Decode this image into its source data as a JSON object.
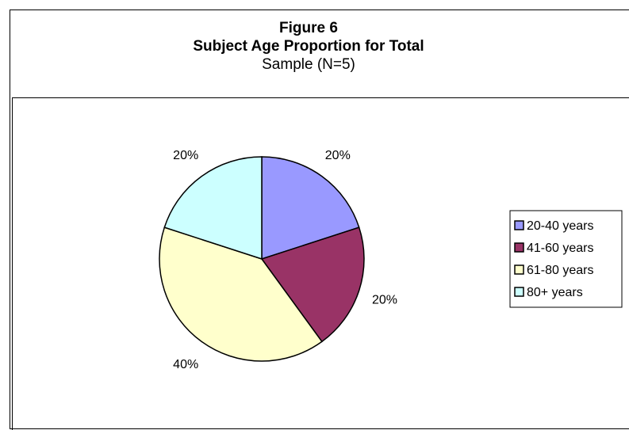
{
  "chart_data": {
    "type": "pie",
    "title": "Figure 6",
    "subtitle_bold": "Subject Age Proportion for Total",
    "subtitle": "Sample (N=5)",
    "categories": [
      "20-40 years",
      "41-60 years",
      "61-80 years",
      "80+ years"
    ],
    "values": [
      20,
      20,
      40,
      20
    ],
    "data_labels": [
      "20%",
      "20%",
      "40%",
      "20%"
    ],
    "colors": [
      "#9999ff",
      "#993366",
      "#ffffcc",
      "#ccffff"
    ],
    "legend_position": "right"
  }
}
